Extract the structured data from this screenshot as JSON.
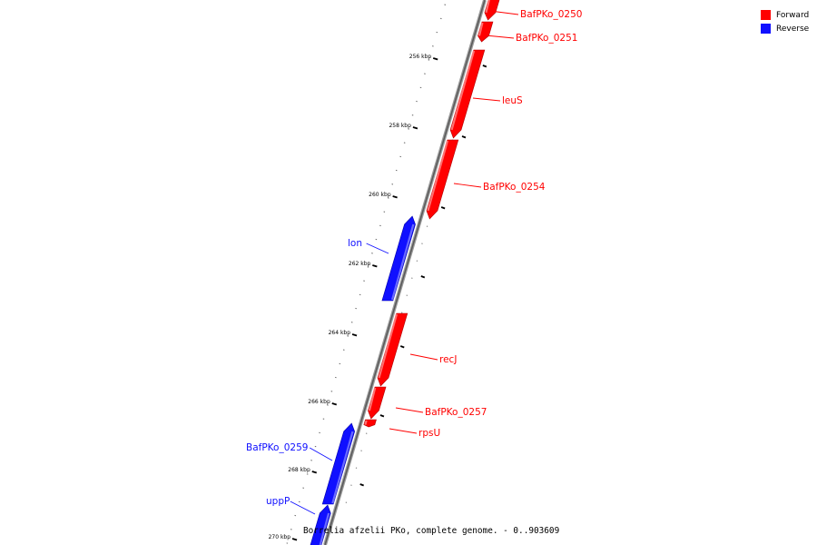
{
  "legend": {
    "forward": {
      "label": "Forward",
      "color": "#ff0000"
    },
    "reverse": {
      "label": "Reverse",
      "color": "#1010ff"
    }
  },
  "caption": "Borrelia afzelii PKo, complete genome. - 0..903609",
  "ticks": [
    "256 kbp",
    "258 kbp",
    "260 kbp",
    "262 kbp",
    "264 kbp",
    "266 kbp",
    "268 kbp",
    "270 kbp"
  ],
  "genes": [
    {
      "name": "BafPKo_0250",
      "strand": "forward"
    },
    {
      "name": "BafPKo_0251",
      "strand": "forward"
    },
    {
      "name": "leuS",
      "strand": "forward"
    },
    {
      "name": "BafPKo_0254",
      "strand": "forward"
    },
    {
      "name": "lon",
      "strand": "reverse"
    },
    {
      "name": "recJ",
      "strand": "forward"
    },
    {
      "name": "BafPKo_0257",
      "strand": "forward"
    },
    {
      "name": "rpsU",
      "strand": "forward"
    },
    {
      "name": "BafPKo_0259",
      "strand": "reverse"
    },
    {
      "name": "uppP",
      "strand": "reverse"
    }
  ]
}
